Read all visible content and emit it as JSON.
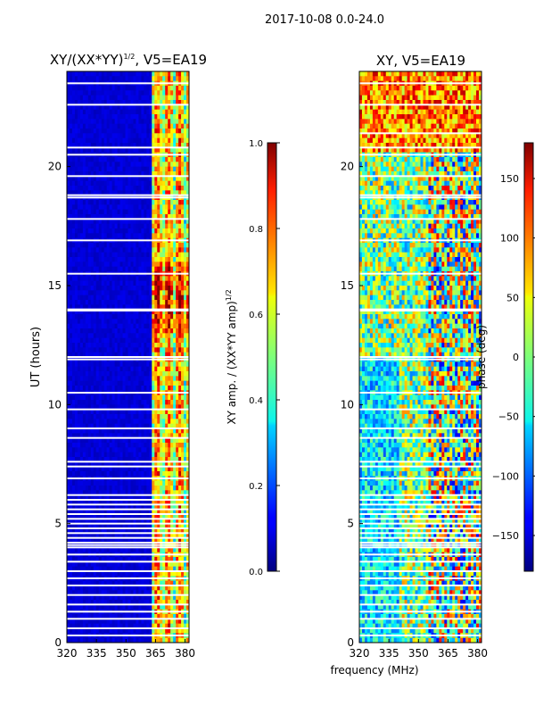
{
  "figure_title": "2017-10-08 0.0-24.0",
  "chart_data": [
    {
      "type": "heatmap",
      "title": "XY/(XX*YY)",
      "title_superscript": "1/2",
      "title_suffix": ", V5=EA19",
      "xlabel": "",
      "ylabel": "UT (hours)",
      "xlim": [
        320,
        382
      ],
      "ylim": [
        0,
        24
      ],
      "xticks": [
        320,
        335,
        350,
        365,
        380
      ],
      "yticks": [
        0,
        5,
        10,
        15,
        20
      ],
      "colorbar": {
        "label": "XY amp. / (XX*YY amp)",
        "label_superscript": "1/2",
        "range": [
          0.0,
          1.0
        ],
        "ticks": [
          "0.0",
          "0.2",
          "0.4",
          "0.6",
          "0.8",
          "1.0"
        ]
      },
      "band_description": "low amplitude (~0.05) for 320-363 MHz; bright striped channels (0.3-0.9) for 363-380 MHz",
      "flagged_gaps_hours": [
        23.5,
        22.6,
        20.8,
        20.5,
        19.6,
        18.8,
        18.7,
        17.8,
        16.9,
        15.5,
        14.0,
        13.95,
        12.0,
        11.9,
        10.5,
        9.8,
        9.0,
        8.6,
        7.6,
        7.4,
        6.9,
        6.2,
        6.0,
        5.8,
        5.6,
        5.4,
        5.2,
        5.0,
        4.8,
        4.6,
        4.4,
        4.2,
        4.1,
        4.0,
        3.7,
        3.4,
        3.0,
        2.7,
        2.4,
        2.0,
        1.6,
        1.3,
        1.0,
        0.6,
        0.3
      ]
    },
    {
      "type": "heatmap",
      "title": "XY, V5=EA19",
      "xlabel": "frequency (MHz)",
      "ylabel": "",
      "xlim": [
        320,
        382
      ],
      "ylim": [
        0,
        24
      ],
      "xticks": [
        320,
        335,
        350,
        365,
        380
      ],
      "yticks": [
        0,
        5,
        10,
        15,
        20
      ],
      "colorbar": {
        "label": "phase (deg)",
        "range": [
          -180,
          180
        ],
        "ticks": [
          "−150",
          "−100",
          "−50",
          "0",
          "50",
          "100",
          "150"
        ]
      },
      "band_description": "noisy phase across band, mostly cyan/green near 0 deg at low frequencies, red/orange patches near 100-180 deg in upper hours (21-24 h)",
      "flagged_gaps_hours": [
        23.5,
        22.6,
        21.4,
        20.8,
        20.5,
        19.6,
        18.8,
        18.7,
        17.8,
        16.9,
        15.5,
        14.0,
        13.95,
        12.0,
        11.9,
        10.5,
        9.8,
        9.0,
        8.6,
        7.6,
        7.4,
        6.9,
        6.2,
        6.0,
        5.8,
        5.6,
        5.4,
        5.2,
        5.0,
        4.8,
        4.6,
        4.4,
        4.2,
        4.1,
        4.0,
        3.7,
        3.4,
        3.0,
        2.7,
        2.4,
        2.0,
        1.6,
        1.3,
        1.0,
        0.6,
        0.3
      ]
    }
  ]
}
